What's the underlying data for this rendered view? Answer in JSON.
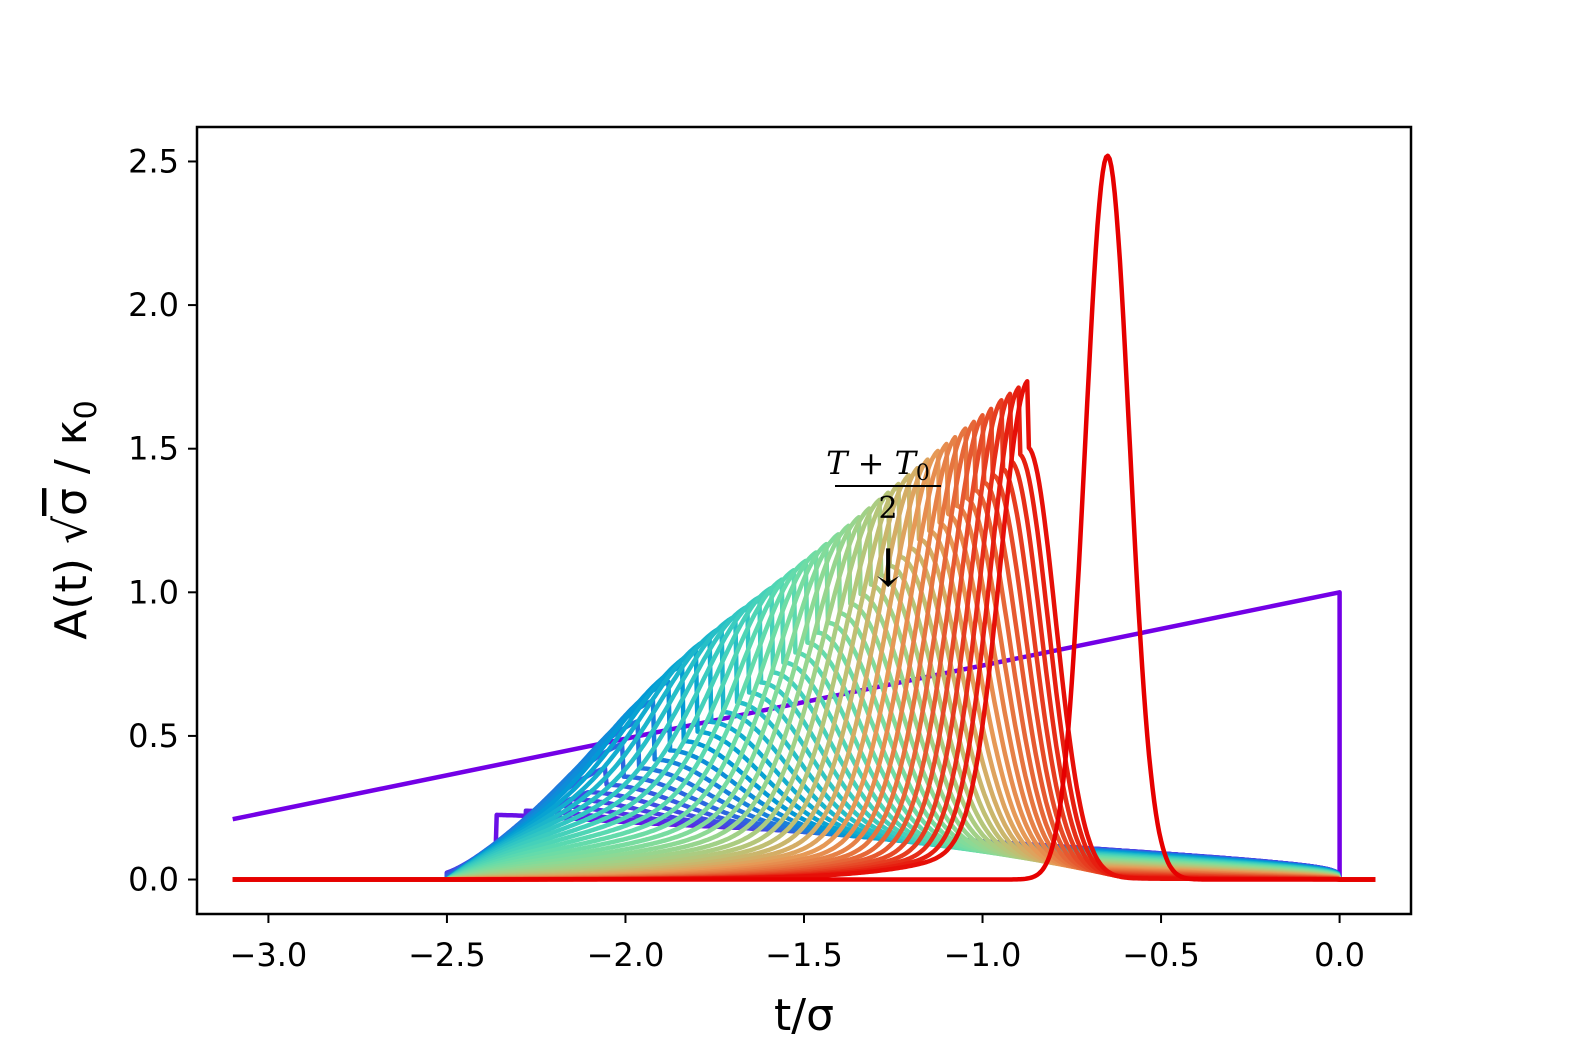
{
  "chart_data": {
    "type": "line",
    "xlabel": "t/σ",
    "ylabel": {
      "prefix": "A(t) √",
      "sigma": "σ",
      "sep": " / κ",
      "sub": "0"
    },
    "xlim": [
      -3.2,
      0.2
    ],
    "ylim": [
      -0.12,
      2.62
    ],
    "xticks": [
      -3.0,
      -2.5,
      -2.0,
      -1.5,
      -1.0,
      -0.5,
      0.0
    ],
    "xtick_labels": [
      "−3.0",
      "−2.5",
      "−2.0",
      "−1.5",
      "−1.0",
      "−0.5",
      "0.0"
    ],
    "yticks": [
      0.0,
      0.5,
      1.0,
      1.5,
      2.0,
      2.5
    ],
    "ytick_labels": [
      "0.0",
      "0.5",
      "1.0",
      "1.5",
      "2.0",
      "2.5"
    ],
    "grid": false,
    "legend": "none",
    "colormap": "rainbow (purple → red)",
    "series_count": 46,
    "series_description": "Family of pulse shapes A(t): the first (purple) rises linearly from 0.21 at t=-3.1 to 1.0 at t=0; intermediate curves start at t=-2.5 with exponential rise and decay to 0 at t=0; the last (red) is a narrow Gaussian peak of height 2.52 at t=-0.65.",
    "series_key_values": {
      "first_curve": {
        "x": [
          -3.1,
          0.0
        ],
        "y": [
          0.21,
          1.0
        ]
      },
      "last_curve_peak": {
        "x": -0.65,
        "y": 2.52
      },
      "common_start_x": -2.5,
      "common_end_x": 0.0,
      "baseline_extent": [
        -3.1,
        0.1
      ]
    },
    "annotation": {
      "numerator": "T + T",
      "numerator_sub": "0",
      "denominator": "2",
      "arrow": "↓",
      "points_to_x": -1.27
    }
  }
}
